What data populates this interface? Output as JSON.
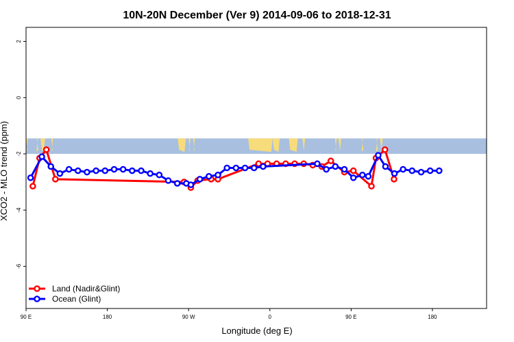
{
  "chart_data": {
    "type": "line",
    "title": "10N-20N December (Ver 9)   2014-09-06 to 2018-12-31",
    "xlabel": "Longitude (deg E)",
    "ylabel": "XCO2 - MLO trend (ppm)",
    "xlim": [
      90,
      600
    ],
    "ylim": [
      -7.5,
      2.5
    ],
    "x_ticks": [
      {
        "value": 90,
        "label": "90 E"
      },
      {
        "value": 180,
        "label": "180"
      },
      {
        "value": 270,
        "label": "90 W"
      },
      {
        "value": 360,
        "label": "0"
      },
      {
        "value": 450,
        "label": "90 E"
      },
      {
        "value": 540,
        "label": "180"
      }
    ],
    "y_ticks": [
      {
        "value": 2,
        "label": "2"
      },
      {
        "value": 0,
        "label": "0"
      },
      {
        "value": -2,
        "label": "-2"
      },
      {
        "value": -4,
        "label": "-4"
      },
      {
        "value": -6,
        "label": "-6"
      }
    ],
    "map_strip": {
      "ymin": -2.0,
      "ymax": -1.45,
      "ocean_color": "#a8bfe0",
      "land_color": "#f7dc7c"
    },
    "series": [
      {
        "name": "Land (Nadir&Glint)",
        "color": "#ff0000",
        "points": [
          [
            97.5,
            -3.15
          ],
          [
            105,
            -2.15
          ],
          [
            112.5,
            -1.85
          ],
          [
            122.5,
            -2.9
          ],
          [
            265,
            -3.0
          ],
          [
            272.5,
            -3.2
          ],
          [
            280,
            -2.95
          ],
          [
            295,
            -2.9
          ],
          [
            302.5,
            -2.9
          ],
          [
            347.5,
            -2.35
          ],
          [
            357.5,
            -2.35
          ],
          [
            367.5,
            -2.35
          ],
          [
            377.5,
            -2.35
          ],
          [
            387.5,
            -2.35
          ],
          [
            397.5,
            -2.35
          ],
          [
            407.5,
            -2.4
          ],
          [
            417.5,
            -2.45
          ],
          [
            427.5,
            -2.25
          ],
          [
            442.5,
            -2.65
          ],
          [
            452.5,
            -2.6
          ],
          [
            472.5,
            -3.15
          ],
          [
            477.5,
            -2.15
          ],
          [
            487.5,
            -1.85
          ],
          [
            497.5,
            -2.9
          ]
        ]
      },
      {
        "name": "Ocean (Glint)",
        "color": "#0000ff",
        "points": [
          [
            95,
            -2.85
          ],
          [
            107.5,
            -2.1
          ],
          [
            117.5,
            -2.45
          ],
          [
            127.5,
            -2.7
          ],
          [
            137.5,
            -2.55
          ],
          [
            147.5,
            -2.6
          ],
          [
            157.5,
            -2.65
          ],
          [
            167.5,
            -2.6
          ],
          [
            177.5,
            -2.6
          ],
          [
            187.5,
            -2.55
          ],
          [
            197.5,
            -2.55
          ],
          [
            207.5,
            -2.6
          ],
          [
            217.5,
            -2.6
          ],
          [
            227.5,
            -2.7
          ],
          [
            237.5,
            -2.75
          ],
          [
            247.5,
            -2.95
          ],
          [
            257.5,
            -3.05
          ],
          [
            267.5,
            -3.05
          ],
          [
            272.5,
            -3.1
          ],
          [
            282.5,
            -2.9
          ],
          [
            292.5,
            -2.8
          ],
          [
            302.5,
            -2.75
          ],
          [
            312.5,
            -2.5
          ],
          [
            322.5,
            -2.5
          ],
          [
            332.5,
            -2.5
          ],
          [
            342.5,
            -2.5
          ],
          [
            352.5,
            -2.45
          ],
          [
            412.5,
            -2.35
          ],
          [
            422.5,
            -2.55
          ],
          [
            432.5,
            -2.45
          ],
          [
            442.5,
            -2.55
          ],
          [
            452.5,
            -2.85
          ],
          [
            462.5,
            -2.75
          ],
          [
            469,
            -2.8
          ],
          [
            480,
            -2.05
          ],
          [
            488,
            -2.45
          ],
          [
            498,
            -2.7
          ],
          [
            507.5,
            -2.55
          ],
          [
            517.5,
            -2.6
          ],
          [
            527.5,
            -2.65
          ],
          [
            537.5,
            -2.6
          ],
          [
            547.5,
            -2.6
          ]
        ]
      }
    ],
    "legend": {
      "position": "bottom-left"
    }
  }
}
